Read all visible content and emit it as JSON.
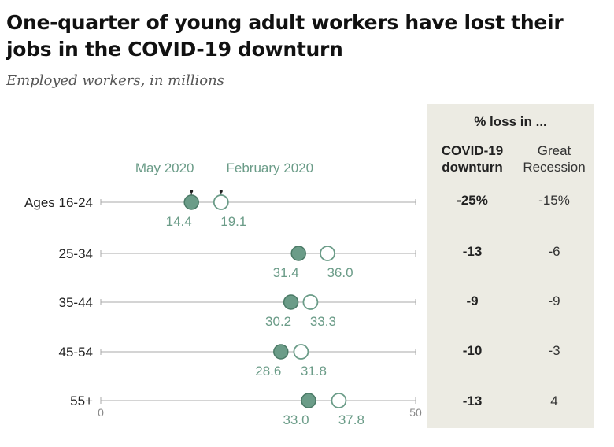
{
  "title": "One-quarter of young adult workers have lost their jobs in the COVID-19 downturn",
  "subtitle": "Employed workers, in millions",
  "table": {
    "header": "% loss in ...",
    "col_covid": "COVID-19 downturn",
    "col_great": "Great Recession",
    "rows": [
      {
        "covid": "-25%",
        "great": "-15%"
      },
      {
        "covid": "-13",
        "great": "-6"
      },
      {
        "covid": "-9",
        "great": "-9"
      },
      {
        "covid": "-10",
        "great": "-3"
      },
      {
        "covid": "-13",
        "great": "4"
      }
    ]
  },
  "chart_data": {
    "type": "scatter",
    "title": "One-quarter of young adult workers have lost their jobs in the COVID-19 downturn",
    "subtitle": "Employed workers, in millions",
    "categories": [
      "Ages 16-24",
      "25-34",
      "35-44",
      "45-54",
      "55+"
    ],
    "series": [
      {
        "name": "May 2020",
        "values": [
          14.4,
          31.4,
          30.2,
          28.6,
          33.0
        ],
        "color": "#6b9c88",
        "fill": "filled"
      },
      {
        "name": "February 2020",
        "values": [
          19.1,
          36.0,
          33.3,
          31.8,
          37.8
        ],
        "color": "#6b9c88",
        "fill": "hollow"
      }
    ],
    "xlim": [
      0,
      50
    ],
    "x_tick_labels": [
      "0",
      "50"
    ],
    "legend": "above-first-row",
    "colors": {
      "accent": "#6b9c88",
      "axis": "#aaaaaa",
      "text": "#222222",
      "table_bg": "#ecebe3"
    }
  }
}
